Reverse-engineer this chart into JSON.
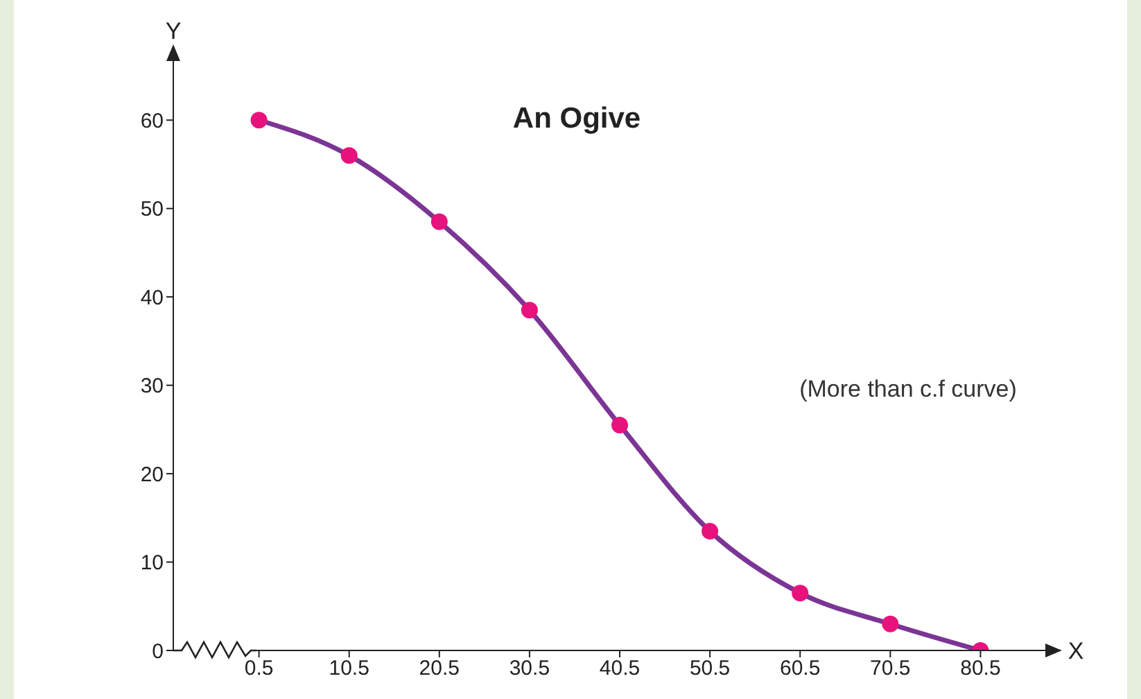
{
  "chart_data": {
    "type": "line",
    "title": "An Ogive",
    "xlabel": "X",
    "ylabel": "Y",
    "x": [
      0.5,
      10.5,
      20.5,
      30.5,
      40.5,
      50.5,
      60.5,
      70.5,
      80.5
    ],
    "series": [
      {
        "color": "#7b3594",
        "values": [
          60,
          56,
          48.5,
          38.5,
          25.5,
          13.5,
          6.5,
          3,
          0
        ]
      }
    ],
    "xlim": [
      -9,
      88
    ],
    "xticks": [
      0.5,
      10.5,
      20.5,
      30.5,
      40.5,
      50.5,
      60.5,
      70.5,
      80.5
    ],
    "ylim": [
      0,
      67
    ],
    "yticks": [
      0,
      10,
      20,
      30,
      40,
      50,
      60
    ],
    "marker": "circle",
    "line_style": "solid",
    "grid": false,
    "annotations": [
      "(More than c.f curve)"
    ]
  }
}
